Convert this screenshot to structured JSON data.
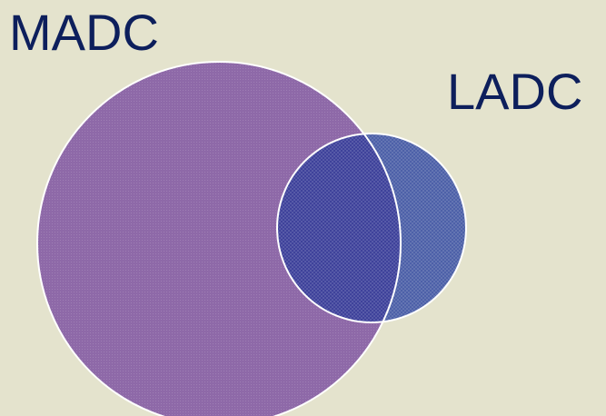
{
  "diagram": {
    "sets": [
      {
        "id": "madc",
        "label": "MADC",
        "fill": "#8e69a8"
      },
      {
        "id": "ladc",
        "label": "LADC",
        "fill": "#4a5ea6"
      }
    ],
    "overlap_fill": "#3b3f99",
    "outline_color": "#ffffff",
    "label_color": "#0d1f5c",
    "background_color": "#e4e3cd"
  }
}
